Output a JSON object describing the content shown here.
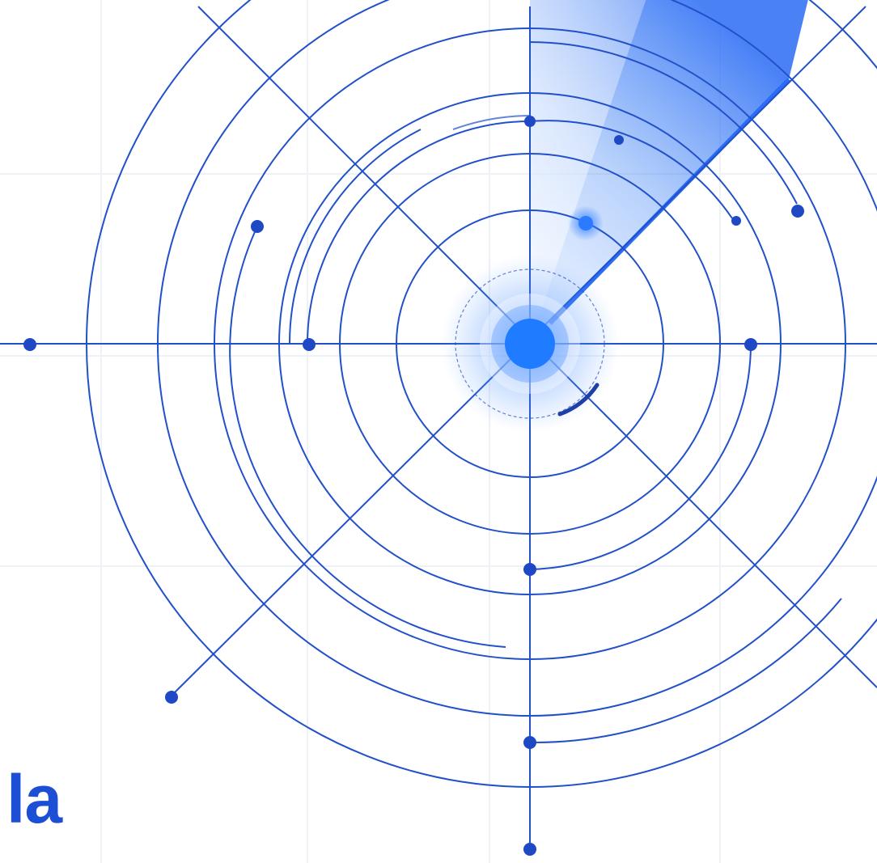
{
  "brand": {
    "partial_text": "la"
  },
  "colors": {
    "background": "#ffffff",
    "grid_line": "#eef1f6",
    "line": "#2250c8",
    "accent": "#2a6cf5",
    "glow": "#3b8bff",
    "text": "#1d4fd6"
  },
  "icons": {
    "center": "radar-center-icon",
    "sweep": "radar-sweep-icon"
  }
}
